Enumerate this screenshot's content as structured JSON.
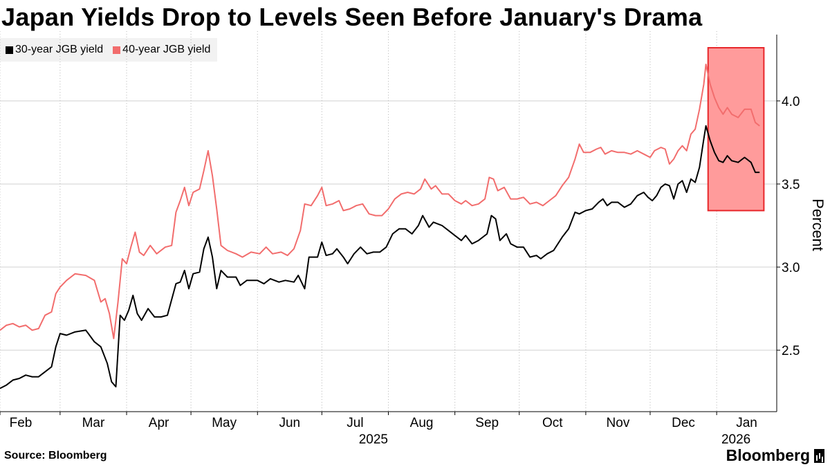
{
  "chart_data": {
    "type": "line",
    "title": "Japan Yields Drop to Levels Seen Before January's Drama",
    "ylabel": "Percent",
    "ylim": [
      2.13,
      4.42
    ],
    "xlim": [
      0,
      362
    ],
    "y_ticks": [
      {
        "value": 2.5,
        "label": "2.5"
      },
      {
        "value": 3.0,
        "label": "3.0"
      },
      {
        "value": 3.5,
        "label": "3.5"
      },
      {
        "value": 4.0,
        "label": "4.0"
      }
    ],
    "x_ticks": [
      {
        "pos": 0,
        "label": "Feb"
      },
      {
        "pos": 28,
        "label": "Mar"
      },
      {
        "pos": 59,
        "label": "Apr"
      },
      {
        "pos": 89,
        "label": "May"
      },
      {
        "pos": 120,
        "label": "Jun"
      },
      {
        "pos": 150,
        "label": "Jul"
      },
      {
        "pos": 181,
        "label": "Aug"
      },
      {
        "pos": 212,
        "label": "Sep"
      },
      {
        "pos": 242,
        "label": "Oct"
      },
      {
        "pos": 273,
        "label": "Nov"
      },
      {
        "pos": 303,
        "label": "Dec"
      },
      {
        "pos": 334,
        "label": "Jan"
      }
    ],
    "year_labels": [
      {
        "pos": 165,
        "label": "2025"
      },
      {
        "pos": 334,
        "label": "2026"
      }
    ],
    "legend": [
      {
        "name": "30-year JGB yield",
        "color": "#000000"
      },
      {
        "name": "40-year JGB yield",
        "color": "#f26d6d"
      }
    ],
    "highlight": {
      "x_start": 330,
      "x_end": 356,
      "y_start": 3.34,
      "y_end": 4.32,
      "fill": "#ff9b9b",
      "stroke": "#e8262a"
    },
    "series": [
      {
        "name": "30-year JGB yield",
        "color": "#000000",
        "points": [
          [
            0,
            2.27
          ],
          [
            3,
            2.29
          ],
          [
            6,
            2.32
          ],
          [
            9,
            2.33
          ],
          [
            12,
            2.35
          ],
          [
            15,
            2.34
          ],
          [
            18,
            2.34
          ],
          [
            21,
            2.37
          ],
          [
            24,
            2.4
          ],
          [
            26,
            2.52
          ],
          [
            28,
            2.6
          ],
          [
            31,
            2.59
          ],
          [
            35,
            2.61
          ],
          [
            40,
            2.62
          ],
          [
            44,
            2.55
          ],
          [
            47,
            2.52
          ],
          [
            50,
            2.42
          ],
          [
            52,
            2.31
          ],
          [
            54,
            2.28
          ],
          [
            56,
            2.71
          ],
          [
            58,
            2.68
          ],
          [
            60,
            2.74
          ],
          [
            62,
            2.83
          ],
          [
            64,
            2.72
          ],
          [
            66,
            2.68
          ],
          [
            69,
            2.75
          ],
          [
            72,
            2.7
          ],
          [
            75,
            2.7
          ],
          [
            78,
            2.71
          ],
          [
            82,
            2.9
          ],
          [
            84,
            2.91
          ],
          [
            86,
            2.98
          ],
          [
            88,
            2.87
          ],
          [
            90,
            2.96
          ],
          [
            93,
            2.97
          ],
          [
            95,
            3.11
          ],
          [
            97,
            3.18
          ],
          [
            99,
            3.06
          ],
          [
            101,
            2.87
          ],
          [
            103,
            2.98
          ],
          [
            106,
            2.94
          ],
          [
            110,
            2.94
          ],
          [
            112,
            2.89
          ],
          [
            115,
            2.92
          ],
          [
            120,
            2.92
          ],
          [
            123,
            2.9
          ],
          [
            126,
            2.93
          ],
          [
            130,
            2.91
          ],
          [
            133,
            2.92
          ],
          [
            137,
            2.91
          ],
          [
            139,
            2.95
          ],
          [
            142,
            2.87
          ],
          [
            144,
            3.06
          ],
          [
            148,
            3.06
          ],
          [
            150,
            3.15
          ],
          [
            152,
            3.07
          ],
          [
            155,
            3.08
          ],
          [
            157,
            3.11
          ],
          [
            160,
            3.06
          ],
          [
            162,
            3.02
          ],
          [
            165,
            3.08
          ],
          [
            168,
            3.12
          ],
          [
            171,
            3.08
          ],
          [
            174,
            3.09
          ],
          [
            177,
            3.09
          ],
          [
            180,
            3.12
          ],
          [
            183,
            3.2
          ],
          [
            186,
            3.23
          ],
          [
            189,
            3.23
          ],
          [
            192,
            3.2
          ],
          [
            195,
            3.25
          ],
          [
            197,
            3.31
          ],
          [
            200,
            3.24
          ],
          [
            202,
            3.27
          ],
          [
            206,
            3.25
          ],
          [
            209,
            3.22
          ],
          [
            212,
            3.19
          ],
          [
            215,
            3.16
          ],
          [
            217,
            3.19
          ],
          [
            220,
            3.14
          ],
          [
            223,
            3.16
          ],
          [
            227,
            3.2
          ],
          [
            229,
            3.31
          ],
          [
            231,
            3.29
          ],
          [
            233,
            3.16
          ],
          [
            236,
            3.2
          ],
          [
            238,
            3.14
          ],
          [
            241,
            3.12
          ],
          [
            244,
            3.12
          ],
          [
            247,
            3.06
          ],
          [
            250,
            3.07
          ],
          [
            252,
            3.05
          ],
          [
            255,
            3.08
          ],
          [
            258,
            3.1
          ],
          [
            262,
            3.18
          ],
          [
            265,
            3.23
          ],
          [
            268,
            3.33
          ],
          [
            270,
            3.32
          ],
          [
            273,
            3.34
          ],
          [
            276,
            3.35
          ],
          [
            279,
            3.39
          ],
          [
            281,
            3.41
          ],
          [
            283,
            3.37
          ],
          [
            285,
            3.39
          ],
          [
            288,
            3.39
          ],
          [
            291,
            3.36
          ],
          [
            294,
            3.38
          ],
          [
            297,
            3.43
          ],
          [
            300,
            3.45
          ],
          [
            302,
            3.42
          ],
          [
            304,
            3.4
          ],
          [
            306,
            3.43
          ],
          [
            308,
            3.48
          ],
          [
            310,
            3.5
          ],
          [
            312,
            3.49
          ],
          [
            314,
            3.41
          ],
          [
            316,
            3.5
          ],
          [
            318,
            3.52
          ],
          [
            320,
            3.45
          ],
          [
            322,
            3.53
          ],
          [
            324,
            3.51
          ],
          [
            326,
            3.6
          ],
          [
            328,
            3.77
          ],
          [
            329,
            3.85
          ],
          [
            331,
            3.76
          ],
          [
            333,
            3.69
          ],
          [
            335,
            3.64
          ],
          [
            337,
            3.63
          ],
          [
            339,
            3.67
          ],
          [
            341,
            3.64
          ],
          [
            344,
            3.63
          ],
          [
            347,
            3.66
          ],
          [
            350,
            3.63
          ],
          [
            352,
            3.57
          ],
          [
            354,
            3.57
          ]
        ]
      },
      {
        "name": "40-year JGB yield",
        "color": "#f26d6d",
        "points": [
          [
            0,
            2.62
          ],
          [
            3,
            2.65
          ],
          [
            6,
            2.66
          ],
          [
            9,
            2.64
          ],
          [
            12,
            2.65
          ],
          [
            15,
            2.62
          ],
          [
            18,
            2.63
          ],
          [
            21,
            2.71
          ],
          [
            24,
            2.73
          ],
          [
            26,
            2.84
          ],
          [
            28,
            2.88
          ],
          [
            31,
            2.92
          ],
          [
            35,
            2.96
          ],
          [
            40,
            2.95
          ],
          [
            44,
            2.92
          ],
          [
            47,
            2.79
          ],
          [
            49,
            2.81
          ],
          [
            51,
            2.72
          ],
          [
            53,
            2.57
          ],
          [
            55,
            2.79
          ],
          [
            57,
            3.05
          ],
          [
            59,
            3.02
          ],
          [
            61,
            3.12
          ],
          [
            63,
            3.21
          ],
          [
            65,
            3.09
          ],
          [
            67,
            3.07
          ],
          [
            70,
            3.13
          ],
          [
            73,
            3.08
          ],
          [
            77,
            3.12
          ],
          [
            80,
            3.13
          ],
          [
            82,
            3.33
          ],
          [
            84,
            3.4
          ],
          [
            86,
            3.48
          ],
          [
            88,
            3.37
          ],
          [
            90,
            3.45
          ],
          [
            93,
            3.47
          ],
          [
            95,
            3.58
          ],
          [
            97,
            3.7
          ],
          [
            99,
            3.55
          ],
          [
            101,
            3.35
          ],
          [
            103,
            3.13
          ],
          [
            106,
            3.1
          ],
          [
            110,
            3.08
          ],
          [
            113,
            3.06
          ],
          [
            117,
            3.09
          ],
          [
            121,
            3.08
          ],
          [
            124,
            3.12
          ],
          [
            127,
            3.08
          ],
          [
            131,
            3.09
          ],
          [
            134,
            3.07
          ],
          [
            137,
            3.11
          ],
          [
            140,
            3.22
          ],
          [
            142,
            3.38
          ],
          [
            145,
            3.37
          ],
          [
            148,
            3.43
          ],
          [
            150,
            3.48
          ],
          [
            152,
            3.37
          ],
          [
            155,
            3.38
          ],
          [
            158,
            3.4
          ],
          [
            160,
            3.34
          ],
          [
            163,
            3.35
          ],
          [
            166,
            3.37
          ],
          [
            169,
            3.38
          ],
          [
            172,
            3.32
          ],
          [
            175,
            3.31
          ],
          [
            178,
            3.31
          ],
          [
            181,
            3.35
          ],
          [
            184,
            3.41
          ],
          [
            187,
            3.44
          ],
          [
            190,
            3.45
          ],
          [
            193,
            3.44
          ],
          [
            196,
            3.47
          ],
          [
            198,
            3.53
          ],
          [
            201,
            3.47
          ],
          [
            203,
            3.49
          ],
          [
            206,
            3.44
          ],
          [
            209,
            3.44
          ],
          [
            212,
            3.4
          ],
          [
            215,
            3.38
          ],
          [
            217,
            3.4
          ],
          [
            220,
            3.37
          ],
          [
            223,
            3.38
          ],
          [
            226,
            3.41
          ],
          [
            228,
            3.54
          ],
          [
            230,
            3.53
          ],
          [
            232,
            3.46
          ],
          [
            235,
            3.48
          ],
          [
            238,
            3.41
          ],
          [
            241,
            3.41
          ],
          [
            244,
            3.42
          ],
          [
            247,
            3.38
          ],
          [
            250,
            3.39
          ],
          [
            253,
            3.37
          ],
          [
            256,
            3.4
          ],
          [
            259,
            3.43
          ],
          [
            262,
            3.49
          ],
          [
            265,
            3.54
          ],
          [
            268,
            3.65
          ],
          [
            270,
            3.74
          ],
          [
            272,
            3.69
          ],
          [
            275,
            3.69
          ],
          [
            278,
            3.71
          ],
          [
            280,
            3.72
          ],
          [
            282,
            3.68
          ],
          [
            285,
            3.7
          ],
          [
            288,
            3.69
          ],
          [
            291,
            3.69
          ],
          [
            294,
            3.68
          ],
          [
            297,
            3.7
          ],
          [
            300,
            3.68
          ],
          [
            303,
            3.66
          ],
          [
            305,
            3.7
          ],
          [
            308,
            3.72
          ],
          [
            310,
            3.71
          ],
          [
            312,
            3.62
          ],
          [
            314,
            3.65
          ],
          [
            316,
            3.7
          ],
          [
            318,
            3.73
          ],
          [
            320,
            3.7
          ],
          [
            322,
            3.8
          ],
          [
            324,
            3.83
          ],
          [
            326,
            3.95
          ],
          [
            328,
            4.1
          ],
          [
            329,
            4.22
          ],
          [
            331,
            4.1
          ],
          [
            333,
            4.02
          ],
          [
            335,
            3.96
          ],
          [
            337,
            3.92
          ],
          [
            339,
            3.96
          ],
          [
            341,
            3.92
          ],
          [
            344,
            3.9
          ],
          [
            347,
            3.95
          ],
          [
            350,
            3.95
          ],
          [
            352,
            3.87
          ],
          [
            354,
            3.85
          ]
        ]
      }
    ]
  },
  "footer": {
    "source": "Source: Bloomberg",
    "brand": "Bloomberg"
  }
}
